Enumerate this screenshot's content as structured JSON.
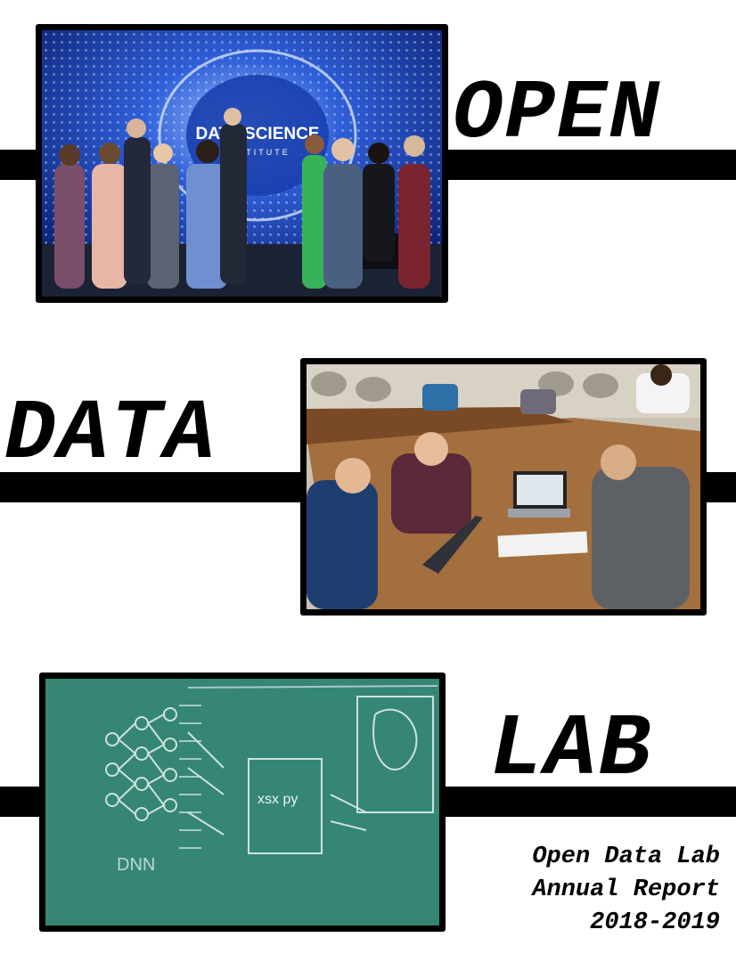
{
  "title_words": {
    "open": "OPEN",
    "data": "DATA",
    "lab": "LAB"
  },
  "subtitle": {
    "line1": "Open Data Lab",
    "line2": "Annual Report",
    "line3": "2018-2019"
  },
  "photos": {
    "group_photo": {
      "wall_sign_line1": "DATA SCIENCE",
      "wall_sign_line2": "INSTITUTE"
    },
    "study_photo": {},
    "chalkboard_photo": {
      "chalk_label_dnn": "DNN",
      "chalk_label_box": "xsx py"
    }
  },
  "colors": {
    "ink": "#000000",
    "background": "#ffffff",
    "led_blue": "#2f5fd8",
    "chalkboard": "#3a8c7a"
  }
}
